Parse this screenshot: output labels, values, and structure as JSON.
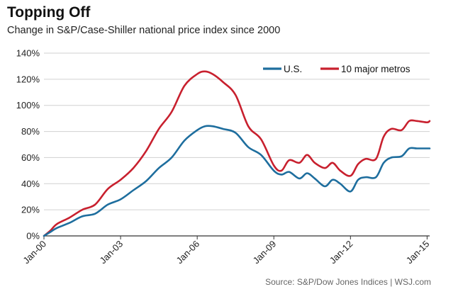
{
  "header": {
    "title": "Topping Off",
    "subtitle": "Change in S&P/Case-Shiller national price index since 2000"
  },
  "footer": {
    "source": "Source: S&P/Dow Jones Indices  |  WSJ.com"
  },
  "colors": {
    "us": "#1e6e9e",
    "metros": "#c8202e",
    "grid": "#d0d0d0",
    "axis": "#333333"
  },
  "chart_data": {
    "type": "line",
    "title": "Topping Off",
    "subtitle": "Change in S&P/Case-Shiller national price index since 2000",
    "xlabel": "",
    "ylabel": "",
    "xlim": [
      2000,
      2015.1
    ],
    "ylim": [
      0,
      140
    ],
    "y_ticks": [
      0,
      20,
      40,
      60,
      80,
      100,
      120,
      140
    ],
    "y_tick_labels": [
      "0%",
      "20%",
      "40%",
      "60%",
      "80%",
      "100%",
      "120%",
      "140%"
    ],
    "x_ticks": [
      2000,
      2003,
      2006,
      2009,
      2012,
      2015
    ],
    "x_tick_labels": [
      "Jan-00",
      "Jan-03",
      "Jan-06",
      "Jan-09",
      "Jan-12",
      "Jan-15"
    ],
    "grid": "horizontal",
    "legend_position": "top-right",
    "series": [
      {
        "name": "U.S.",
        "color_key": "us",
        "x": [
          2000,
          2000.25,
          2000.5,
          2001,
          2001.5,
          2002,
          2002.5,
          2003,
          2003.5,
          2004,
          2004.5,
          2005,
          2005.5,
          2006,
          2006.3,
          2006.6,
          2007,
          2007.5,
          2008,
          2008.5,
          2009,
          2009.3,
          2009.6,
          2010,
          2010.3,
          2010.6,
          2011,
          2011.3,
          2011.6,
          2012,
          2012.3,
          2012.6,
          2013,
          2013.3,
          2013.6,
          2014,
          2014.3,
          2014.6,
          2015,
          2015.1
        ],
        "y": [
          0,
          3,
          6,
          10,
          15,
          17,
          24,
          28,
          35,
          42,
          52,
          60,
          73,
          81,
          84,
          84,
          82,
          79,
          68,
          62,
          50,
          47,
          49,
          44,
          48,
          44,
          38,
          43,
          40,
          34,
          43,
          45,
          45,
          56,
          60,
          61,
          67,
          67,
          67,
          67
        ]
      },
      {
        "name": "10 major metros",
        "color_key": "metros",
        "x": [
          2000,
          2000.25,
          2000.5,
          2001,
          2001.5,
          2002,
          2002.5,
          2003,
          2003.5,
          2004,
          2004.5,
          2005,
          2005.5,
          2006,
          2006.3,
          2006.6,
          2007,
          2007.5,
          2008,
          2008.5,
          2009,
          2009.3,
          2009.6,
          2010,
          2010.3,
          2010.6,
          2011,
          2011.3,
          2011.6,
          2012,
          2012.3,
          2012.6,
          2013,
          2013.3,
          2013.6,
          2014,
          2014.3,
          2014.6,
          2015,
          2015.1
        ],
        "y": [
          0,
          4,
          9,
          14,
          20,
          24,
          36,
          43,
          52,
          65,
          82,
          95,
          115,
          124,
          126,
          124,
          118,
          108,
          84,
          74,
          54,
          50,
          58,
          56,
          62,
          56,
          52,
          56,
          50,
          46,
          55,
          59,
          59,
          76,
          82,
          81,
          88,
          88,
          87,
          88
        ]
      }
    ]
  }
}
